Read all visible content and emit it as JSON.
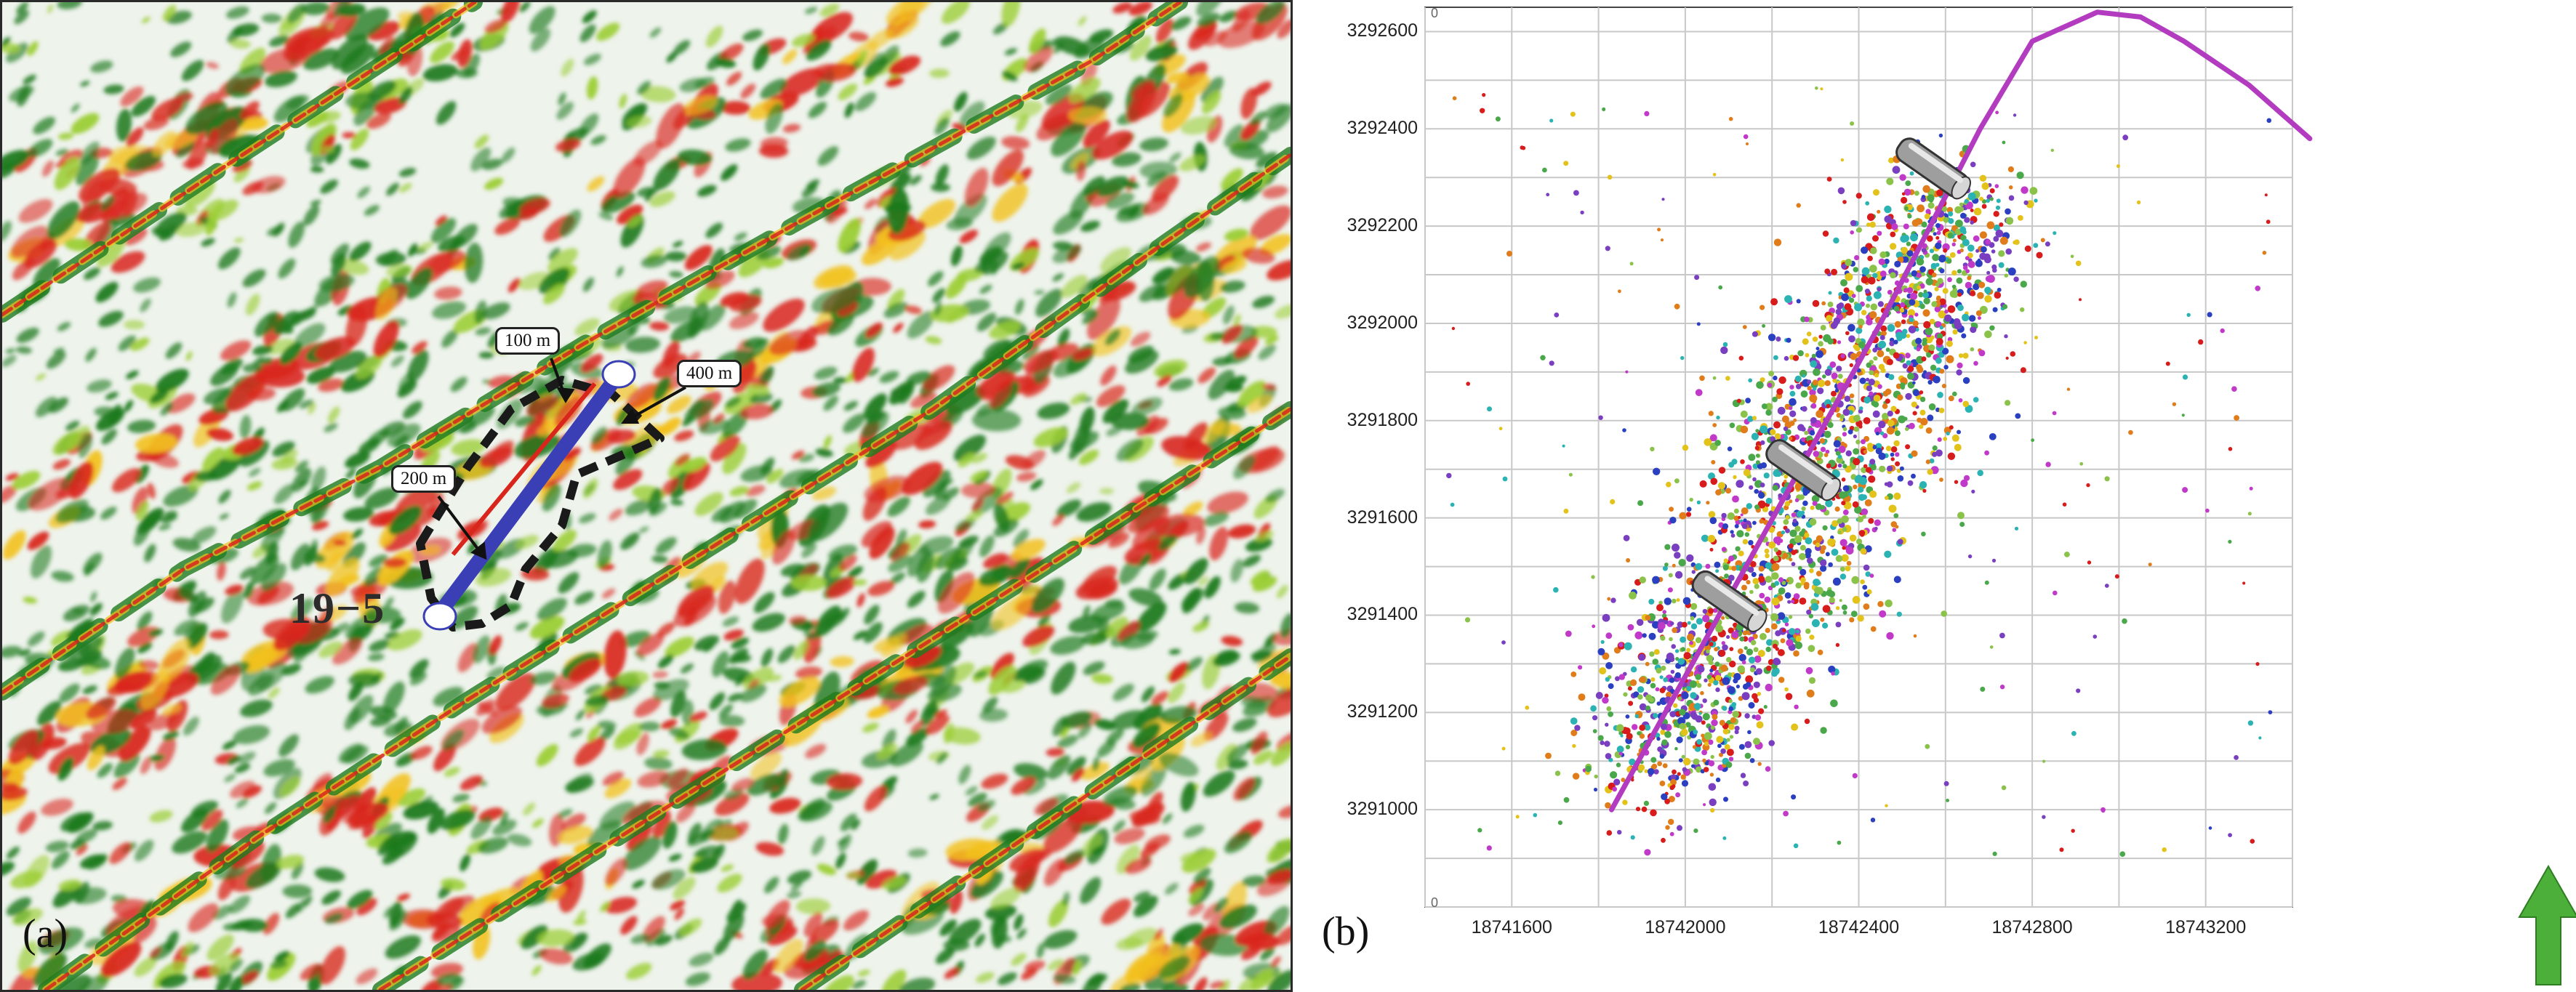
{
  "panel_a": {
    "letter": "(a)",
    "well_name": "19−5",
    "callouts": [
      "100 m",
      "400 m",
      "200 m"
    ],
    "colors": {
      "background": "#eef3ec",
      "low": "#1f7a1f",
      "mid": "#9acd32",
      "high_yellow": "#f2c11d",
      "high_red": "#d9261c",
      "wellbore": "#3a3fb5",
      "wellbore_core": "#d9261c",
      "envelope": "#1a1a1a"
    }
  },
  "panel_b": {
    "letter": "(b)",
    "x_ticks": [
      "18741600",
      "18742000",
      "18742400",
      "18742800",
      "18743200"
    ],
    "y_ticks": [
      "3292600",
      "3292400",
      "3292200",
      "3292000",
      "3291800",
      "3291600",
      "3291400",
      "3291200",
      "3291000"
    ],
    "corner_zero_top": "0",
    "corner_zero_bottom": "0",
    "north_arrow_icon": "north-arrow-icon",
    "colors": {
      "well_path": "#b23bc0",
      "grid": "#c8c8c8",
      "arrow": "#4caf3a"
    }
  },
  "chart_data": {
    "type": "scatter",
    "title": "",
    "xlabel": "",
    "ylabel": "",
    "xlim": [
      18741400,
      18743400
    ],
    "ylim": [
      3290800,
      3292650
    ],
    "grid": true,
    "well_path": {
      "x": [
        18741830,
        18742140,
        18742450,
        18742680,
        18742800,
        18742950,
        18743050,
        18743150,
        18743300,
        18743440
      ],
      "y": [
        3291000,
        3291500,
        3292000,
        3292400,
        3292580,
        3292640,
        3292630,
        3292580,
        3292490,
        3292380
      ]
    },
    "packers": [
      {
        "x": 18742100,
        "y": 3291430
      },
      {
        "x": 18742270,
        "y": 3291700
      },
      {
        "x": 18742570,
        "y": 3292320
      }
    ],
    "event_cloud": {
      "start": [
        18741900,
        3291050
      ],
      "end": [
        18742650,
        3292250
      ],
      "colors": [
        "#d81b1b",
        "#2b3fc1",
        "#e3c21a",
        "#2bb3b3",
        "#4aa84a",
        "#c139c9",
        "#e07d1a",
        "#7a3fc1",
        "#8bc34a"
      ]
    }
  }
}
